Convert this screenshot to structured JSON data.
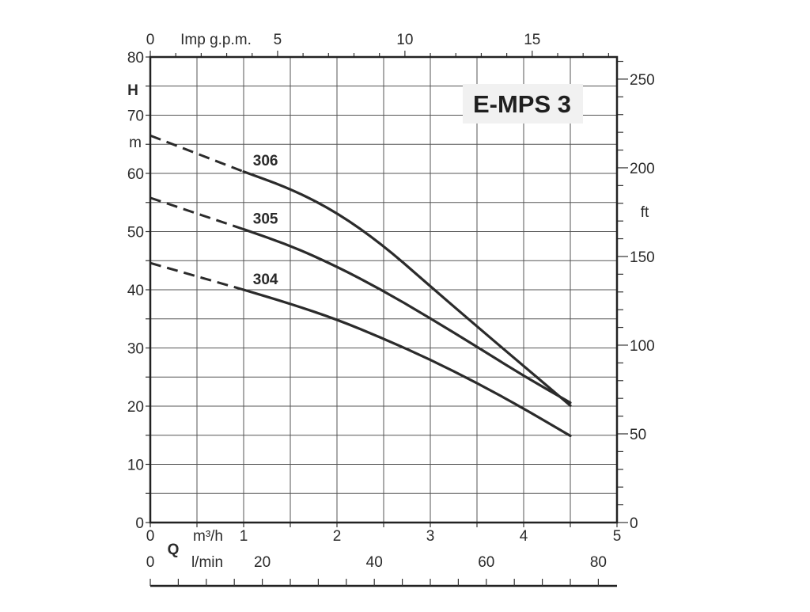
{
  "chart_data": {
    "type": "line",
    "title": "E-MPS 3",
    "x_axes": {
      "m3h": {
        "label": "m³/h",
        "range": [
          0,
          5
        ],
        "ticks": [
          "0",
          "1",
          "2",
          "3",
          "4",
          "5"
        ]
      },
      "lmin": {
        "label": "l/min",
        "ticks": [
          "0",
          "20",
          "40",
          "60",
          "80"
        ]
      },
      "imp_gpm": {
        "label": "Imp g.p.m.",
        "ticks": [
          "0",
          "5",
          "10",
          "15"
        ]
      },
      "q_symbol": "Q"
    },
    "y_axes": {
      "left": {
        "symbol": "H",
        "unit": "m",
        "range": [
          0,
          80
        ],
        "ticks": [
          "0",
          "10",
          "20",
          "30",
          "40",
          "50",
          "60",
          "70",
          "80"
        ]
      },
      "right": {
        "unit": "ft",
        "ticks": [
          "0",
          "50",
          "100",
          "150",
          "200",
          "250"
        ]
      }
    },
    "grid": true,
    "series": [
      {
        "name": "306",
        "dashed": {
          "x": [
            0,
            1
          ],
          "y": [
            66.5,
            60.3
          ]
        },
        "solid": {
          "x": [
            1,
            1.5,
            2,
            2.5,
            3,
            3.5,
            4,
            4.5
          ],
          "y": [
            60.3,
            57.4,
            53.3,
            47.6,
            40.6,
            33.7,
            26.9,
            20.1
          ]
        }
      },
      {
        "name": "305",
        "dashed": {
          "x": [
            0,
            1
          ],
          "y": [
            55.8,
            50.4
          ]
        },
        "solid": {
          "x": [
            1,
            1.5,
            2,
            2.5,
            3,
            3.5,
            4,
            4.5
          ],
          "y": [
            50.4,
            47.6,
            44.0,
            39.8,
            35.1,
            30.2,
            25.2,
            20.6
          ]
        }
      },
      {
        "name": "304",
        "dashed": {
          "x": [
            0,
            1
          ],
          "y": [
            44.6,
            40.0
          ]
        },
        "solid": {
          "x": [
            1,
            1.5,
            2,
            2.5,
            3,
            3.5,
            4,
            4.5
          ],
          "y": [
            40.0,
            37.6,
            34.9,
            31.6,
            28.0,
            24.0,
            19.6,
            14.9
          ]
        }
      }
    ]
  }
}
